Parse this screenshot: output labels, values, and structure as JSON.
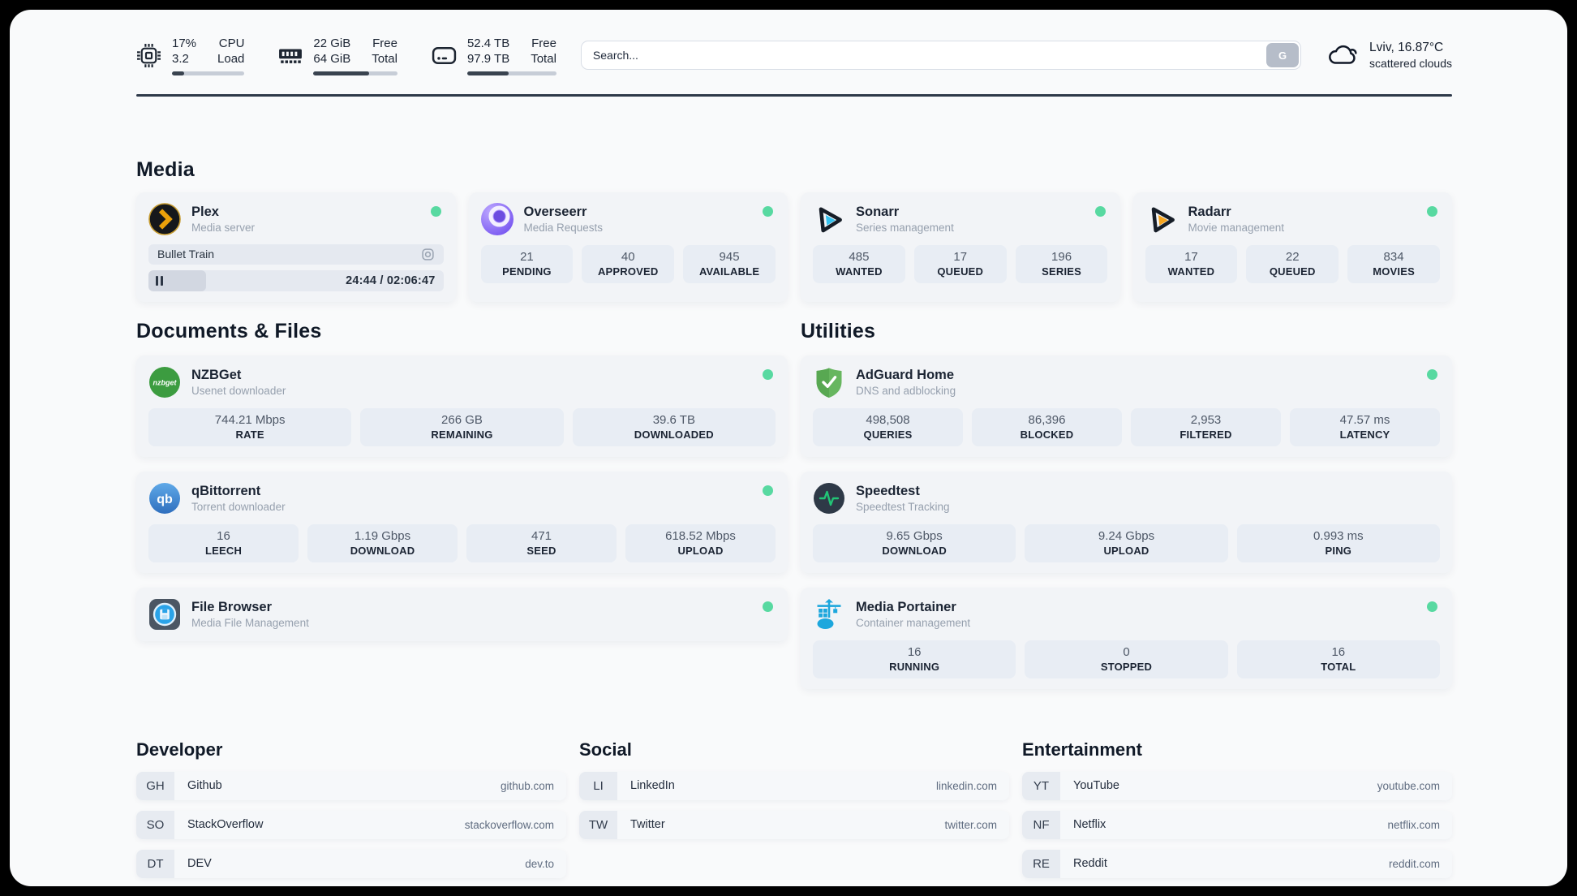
{
  "colors": {
    "accent_green": "#58d9a1",
    "divider": "#2e3949"
  },
  "header": {
    "cpu": {
      "value1": "17%",
      "value2": "3.2",
      "label1": "CPU",
      "label2": "Load",
      "progress": 17
    },
    "memory": {
      "value1": "22 GiB",
      "value2": "64 GiB",
      "label1": "Free",
      "label2": "Total",
      "progress": 66
    },
    "disk": {
      "value1": "52.4 TB",
      "value2": "97.9 TB",
      "label1": "Free",
      "label2": "Total",
      "progress": 46
    },
    "search": {
      "placeholder": "Search...",
      "button": "G"
    },
    "weather": {
      "title": "Lviv, 16.87°C",
      "subtitle": "scattered clouds"
    }
  },
  "media": {
    "title": "Media",
    "plex": {
      "name": "Plex",
      "desc": "Media server",
      "online": true,
      "now_playing": "Bullet Train",
      "time": "24:44 / 02:06:47",
      "progress": 19.5
    },
    "overseerr": {
      "name": "Overseerr",
      "desc": "Media Requests",
      "online": true,
      "stats": [
        {
          "value": "21",
          "label": "PENDING"
        },
        {
          "value": "40",
          "label": "APPROVED"
        },
        {
          "value": "945",
          "label": "AVAILABLE"
        }
      ]
    },
    "sonarr": {
      "name": "Sonarr",
      "desc": "Series management",
      "online": true,
      "stats": [
        {
          "value": "485",
          "label": "WANTED"
        },
        {
          "value": "17",
          "label": "QUEUED"
        },
        {
          "value": "196",
          "label": "SERIES"
        }
      ]
    },
    "radarr": {
      "name": "Radarr",
      "desc": "Movie management",
      "online": true,
      "stats": [
        {
          "value": "17",
          "label": "WANTED"
        },
        {
          "value": "22",
          "label": "QUEUED"
        },
        {
          "value": "834",
          "label": "MOVIES"
        }
      ]
    }
  },
  "documents": {
    "title": "Documents & Files",
    "nzbget": {
      "name": "NZBGet",
      "desc": "Usenet downloader",
      "online": true,
      "stats": [
        {
          "value": "744.21 Mbps",
          "label": "RATE"
        },
        {
          "value": "266 GB",
          "label": "REMAINING"
        },
        {
          "value": "39.6 TB",
          "label": "DOWNLOADED"
        }
      ]
    },
    "qbittorrent": {
      "name": "qBittorrent",
      "desc": "Torrent downloader",
      "online": true,
      "stats": [
        {
          "value": "16",
          "label": "LEECH"
        },
        {
          "value": "1.19 Gbps",
          "label": "DOWNLOAD"
        },
        {
          "value": "471",
          "label": "SEED"
        },
        {
          "value": "618.52 Mbps",
          "label": "UPLOAD"
        }
      ]
    },
    "filebrowser": {
      "name": "File Browser",
      "desc": "Media File Management",
      "online": true
    }
  },
  "utilities": {
    "title": "Utilities",
    "adguard": {
      "name": "AdGuard Home",
      "desc": "DNS and adblocking",
      "online": true,
      "stats": [
        {
          "value": "498,508",
          "label": "QUERIES"
        },
        {
          "value": "86,396",
          "label": "BLOCKED"
        },
        {
          "value": "2,953",
          "label": "FILTERED"
        },
        {
          "value": "47.57 ms",
          "label": "LATENCY"
        }
      ]
    },
    "speedtest": {
      "name": "Speedtest",
      "desc": "Speedtest Tracking",
      "online": false,
      "stats": [
        {
          "value": "9.65 Gbps",
          "label": "DOWNLOAD"
        },
        {
          "value": "9.24 Gbps",
          "label": "UPLOAD"
        },
        {
          "value": "0.993 ms",
          "label": "PING"
        }
      ]
    },
    "portainer": {
      "name": "Media Portainer",
      "desc": "Container management",
      "online": true,
      "stats": [
        {
          "value": "16",
          "label": "RUNNING"
        },
        {
          "value": "0",
          "label": "STOPPED"
        },
        {
          "value": "16",
          "label": "TOTAL"
        }
      ]
    }
  },
  "bookmarks": [
    {
      "title": "Developer",
      "links": [
        {
          "tag": "GH",
          "name": "Github",
          "url": "github.com"
        },
        {
          "tag": "SO",
          "name": "StackOverflow",
          "url": "stackoverflow.com"
        },
        {
          "tag": "DT",
          "name": "DEV",
          "url": "dev.to"
        }
      ]
    },
    {
      "title": "Social",
      "links": [
        {
          "tag": "LI",
          "name": "LinkedIn",
          "url": "linkedin.com"
        },
        {
          "tag": "TW",
          "name": "Twitter",
          "url": "twitter.com"
        }
      ]
    },
    {
      "title": "Entertainment",
      "links": [
        {
          "tag": "YT",
          "name": "YouTube",
          "url": "youtube.com"
        },
        {
          "tag": "NF",
          "name": "Netflix",
          "url": "netflix.com"
        },
        {
          "tag": "RE",
          "name": "Reddit",
          "url": "reddit.com"
        }
      ]
    }
  ]
}
